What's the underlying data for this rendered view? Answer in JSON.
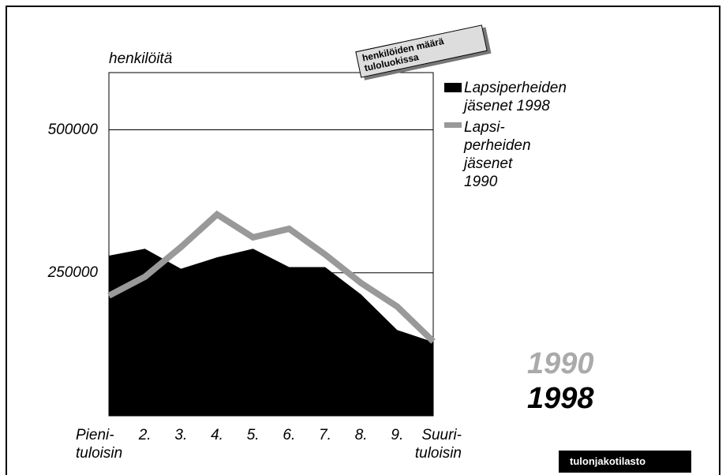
{
  "chart_data": {
    "type": "area-line",
    "y_label": "henkilöitä",
    "annotation": "henkilöiden määrä\ntuloluokissa",
    "big_labels": [
      "1990",
      "1998"
    ],
    "footer": "tulonjakotilasto",
    "categories": [
      "Pieni-\ntuloisin",
      "2.",
      "3.",
      "4.",
      "5.",
      "6.",
      "7.",
      "8.",
      "9.",
      "Suuri-\ntuloisin"
    ],
    "series": [
      {
        "name": "Lapsiperheiden\njäsenet 1998",
        "color": "#000000",
        "kind": "area",
        "values": [
          280000,
          292000,
          257000,
          277000,
          292000,
          260000,
          260000,
          212000,
          150000,
          129000
        ]
      },
      {
        "name": "Lapsi-\nperheiden\njäsenet\n1990",
        "color": "#999999",
        "kind": "line",
        "values": [
          210000,
          243000,
          295000,
          352000,
          312000,
          327000,
          282000,
          232000,
          191000,
          130000
        ]
      }
    ],
    "ylim": [
      0,
      600000
    ],
    "yticks": [
      250000,
      500000
    ],
    "grid": true
  }
}
